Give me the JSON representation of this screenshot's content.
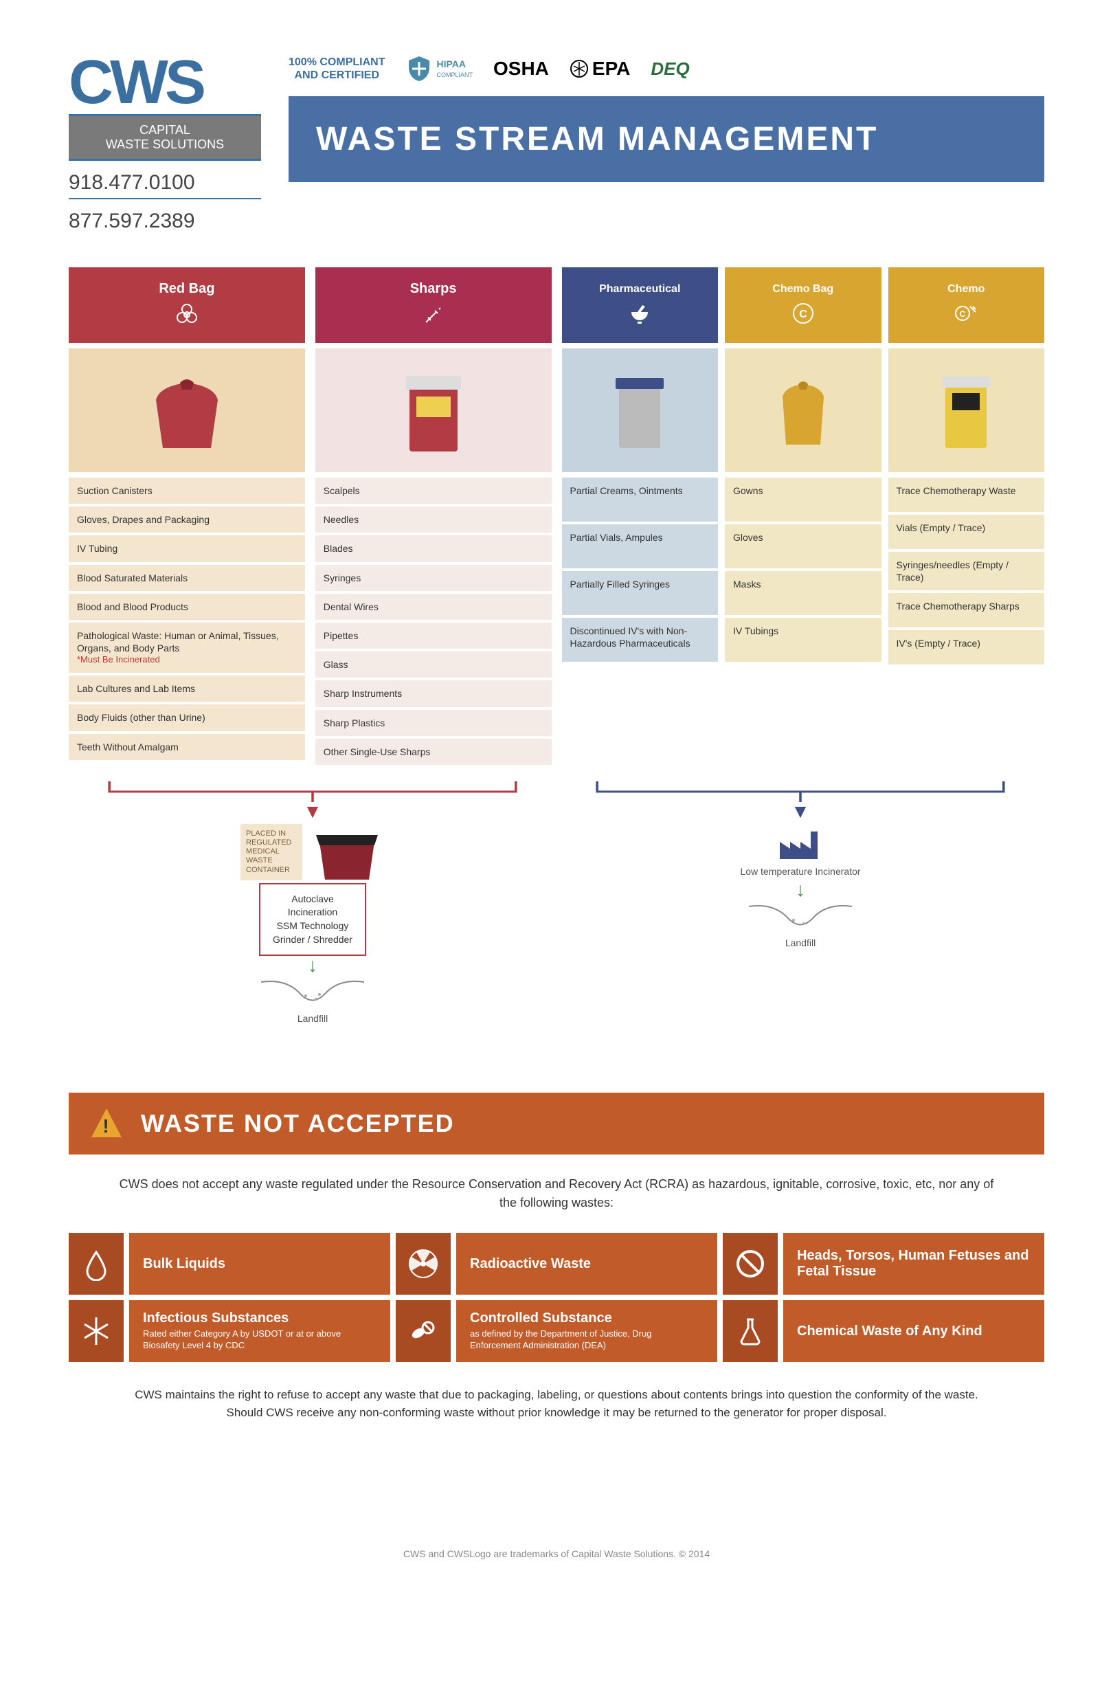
{
  "logo": {
    "main": "CWS",
    "line1": "CAPITAL",
    "line2": "WASTE SOLUTIONS"
  },
  "phones": [
    "918.477.0100",
    "877.597.2389"
  ],
  "compliance": {
    "text1": "100% COMPLIANT",
    "text2": "AND CERTIFIED",
    "badges": [
      "HIPAA",
      "OSHA",
      "EPA",
      "DEQ"
    ]
  },
  "title": "WASTE STREAM MANAGEMENT",
  "colors": {
    "redbag_header": "#b13c44",
    "redbag_img_bg": "#eed9b4",
    "redbag_item": "#f4e6ce",
    "sharps_header": "#a82f4f",
    "sharps_img_bg": "#f2e2e2",
    "sharps_item": "#f5ebe6",
    "pharma_header": "#3e4f87",
    "pharma_img_bg": "#c5d3de",
    "pharma_item": "#cdd9e2",
    "chemobag_header": "#d8a530",
    "chemobag_img_bg": "#f0e2b8",
    "chemobag_item": "#f2e7c4",
    "chemo_header": "#d8a530",
    "chemo_img_bg": "#f0e2b8",
    "chemo_item": "#f2e7c4",
    "title_banner": "#4a6fa5",
    "na_banner": "#c25b2a",
    "na_icon_bg": "#a84a22",
    "arrow_red": "#b13c44",
    "arrow_blue": "#3e4f87",
    "arrow_green": "#4a8a4a"
  },
  "streams": {
    "redbag": {
      "title": "Red Bag",
      "icon": "biohazard",
      "items": [
        {
          "t": "Suction Canisters"
        },
        {
          "t": "Gloves, Drapes and Packaging"
        },
        {
          "t": "IV Tubing"
        },
        {
          "t": "Blood Saturated Materials"
        },
        {
          "t": "Blood and Blood Products"
        },
        {
          "t": "Pathological Waste: Human or Animal, Tissues, Organs, and Body Parts",
          "note": "*Must Be Incinerated"
        },
        {
          "t": "Lab Cultures and Lab Items"
        },
        {
          "t": "Body Fluids (other than Urine)"
        },
        {
          "t": "Teeth Without Amalgam"
        }
      ]
    },
    "sharps": {
      "title": "Sharps",
      "icon": "syringe",
      "items": [
        {
          "t": "Scalpels"
        },
        {
          "t": "Needles"
        },
        {
          "t": "Blades"
        },
        {
          "t": "Syringes"
        },
        {
          "t": "Dental Wires"
        },
        {
          "t": "Pipettes"
        },
        {
          "t": "Glass"
        },
        {
          "t": "Sharp Instruments"
        },
        {
          "t": "Sharp Plastics"
        },
        {
          "t": "Other Single-Use Sharps"
        }
      ]
    },
    "pharma": {
      "title": "Pharmaceutical",
      "icon": "mortar",
      "items": [
        {
          "t": "Partial Creams, Ointments"
        },
        {
          "t": "Partial Vials, Ampules"
        },
        {
          "t": "Partially Filled Syringes"
        },
        {
          "t": "Discontinued IV's with Non-Hazardous Pharmaceuticals"
        }
      ]
    },
    "chemobag": {
      "title": "Chemo Bag",
      "icon": "chemo",
      "items": [
        {
          "t": "Gowns"
        },
        {
          "t": "Gloves"
        },
        {
          "t": "Masks"
        },
        {
          "t": "IV Tubings"
        }
      ]
    },
    "chemo": {
      "title": "Chemo",
      "icon": "chemo-syringe",
      "items": [
        {
          "t": "Trace Chemotherapy Waste"
        },
        {
          "t": "Vials (Empty / Trace)"
        },
        {
          "t": "Syringes/needles (Empty / Trace)"
        },
        {
          "t": "Trace Chemotherapy Sharps"
        },
        {
          "t": "IV's (Empty / Trace)"
        }
      ]
    }
  },
  "flow_left": {
    "container_label": "PLACED IN REGULATED MEDICAL WASTE CONTAINER",
    "process": "Autoclave\nIncineration\nSSM Technology\nGrinder / Shredder",
    "end": "Landfill"
  },
  "flow_right": {
    "process": "Low temperature Incinerator",
    "end": "Landfill"
  },
  "not_accepted": {
    "title": "WASTE NOT ACCEPTED",
    "intro": "CWS does not accept any waste regulated under the Resource Conservation and Recovery Act (RCRA) as hazardous, ignitable, corrosive, toxic, etc, nor any of the following wastes:",
    "items": [
      {
        "icon": "drop",
        "main": "Bulk Liquids",
        "sub": ""
      },
      {
        "icon": "radioactive",
        "main": "Radioactive Waste",
        "sub": ""
      },
      {
        "icon": "prohibit",
        "main": "Heads, Torsos, Human Fetuses and Fetal Tissue",
        "sub": ""
      },
      {
        "icon": "snowflake",
        "main": "Infectious Substances",
        "sub": "Rated either Category A by USDOT or at or above Biosafety Level 4 by CDC"
      },
      {
        "icon": "pills",
        "main": "Controlled Substance",
        "sub": "as defined by the Department of Justice, Drug Enforcement Administration (DEA)"
      },
      {
        "icon": "flask",
        "main": "Chemical Waste of Any Kind",
        "sub": ""
      }
    ],
    "footer": "CWS maintains the right to refuse to accept any waste that due to packaging, labeling, or questions about contents brings into question the conformity of the waste. Should CWS receive any non-conforming waste without prior knowledge it may be returned to the generator for proper disposal."
  },
  "trademark": "CWS and CWSLogo are trademarks of Capital Waste Solutions. © 2014"
}
